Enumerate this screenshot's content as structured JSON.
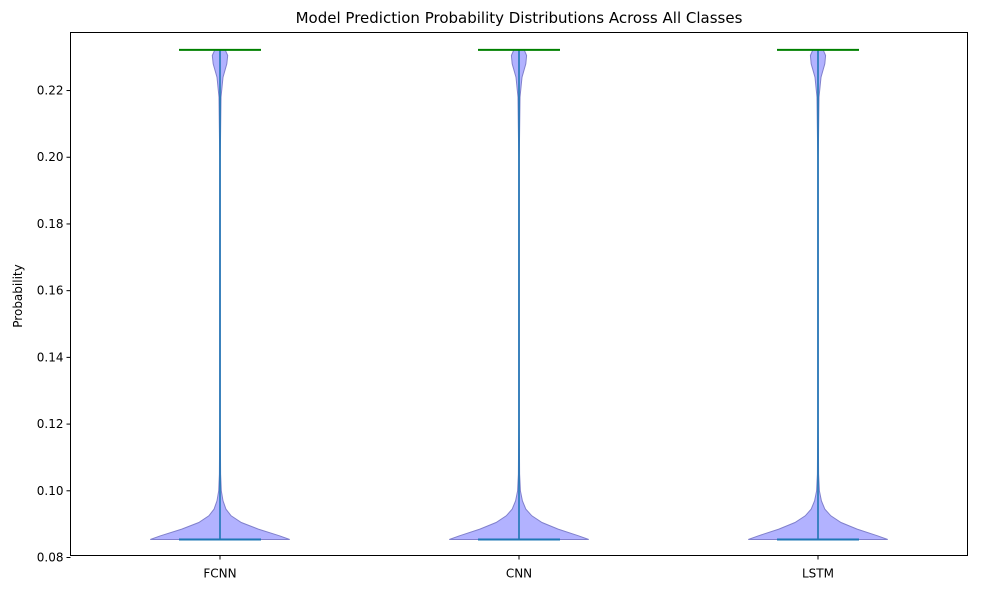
{
  "chart_data": {
    "type": "violin",
    "title": "Model Prediction Probability Distributions Across All Classes",
    "xlabel": "",
    "ylabel": "Probability",
    "ylim": [
      0.0806,
      0.2374
    ],
    "yticks": [
      0.08,
      0.1,
      0.12,
      0.14,
      0.16,
      0.18,
      0.2,
      0.22
    ],
    "ytick_labels": [
      "0.08",
      "0.10",
      "0.12",
      "0.14",
      "0.16",
      "0.18",
      "0.20",
      "0.22"
    ],
    "categories": [
      "FCNN",
      "CNN",
      "LSTM"
    ],
    "grid": false,
    "colors": {
      "violin_fill": "#aaaaff",
      "violin_edge": "#8080cc",
      "stem": "#1f77b4",
      "max_bar": "#008000",
      "min_bar": "#1f77b4"
    },
    "series": [
      {
        "min": 0.0854,
        "max": 0.2322,
        "density": [
          [
            0.0854,
            0.82
          ],
          [
            0.0865,
            0.7
          ],
          [
            0.0885,
            0.45
          ],
          [
            0.0905,
            0.25
          ],
          [
            0.0925,
            0.13
          ],
          [
            0.0945,
            0.07
          ],
          [
            0.097,
            0.035
          ],
          [
            0.1,
            0.015
          ],
          [
            0.105,
            0.007
          ],
          [
            0.12,
            0.004
          ],
          [
            0.2,
            0.004
          ],
          [
            0.218,
            0.012
          ],
          [
            0.224,
            0.035
          ],
          [
            0.228,
            0.08
          ],
          [
            0.2305,
            0.09
          ],
          [
            0.2322,
            0.06
          ]
        ]
      },
      {
        "min": 0.0854,
        "max": 0.2322,
        "density": [
          [
            0.0854,
            0.82
          ],
          [
            0.0865,
            0.7
          ],
          [
            0.0885,
            0.46
          ],
          [
            0.0905,
            0.27
          ],
          [
            0.0925,
            0.15
          ],
          [
            0.0945,
            0.08
          ],
          [
            0.097,
            0.04
          ],
          [
            0.1,
            0.016
          ],
          [
            0.105,
            0.007
          ],
          [
            0.12,
            0.004
          ],
          [
            0.2,
            0.004
          ],
          [
            0.218,
            0.012
          ],
          [
            0.224,
            0.035
          ],
          [
            0.228,
            0.08
          ],
          [
            0.2305,
            0.09
          ],
          [
            0.2322,
            0.06
          ]
        ]
      },
      {
        "min": 0.0854,
        "max": 0.2322,
        "density": [
          [
            0.0854,
            0.82
          ],
          [
            0.0865,
            0.7
          ],
          [
            0.0885,
            0.46
          ],
          [
            0.0905,
            0.27
          ],
          [
            0.0925,
            0.15
          ],
          [
            0.0945,
            0.08
          ],
          [
            0.097,
            0.04
          ],
          [
            0.1,
            0.016
          ],
          [
            0.105,
            0.007
          ],
          [
            0.12,
            0.004
          ],
          [
            0.2,
            0.004
          ],
          [
            0.218,
            0.012
          ],
          [
            0.224,
            0.035
          ],
          [
            0.228,
            0.08
          ],
          [
            0.2305,
            0.09
          ],
          [
            0.2322,
            0.06
          ]
        ]
      }
    ]
  }
}
